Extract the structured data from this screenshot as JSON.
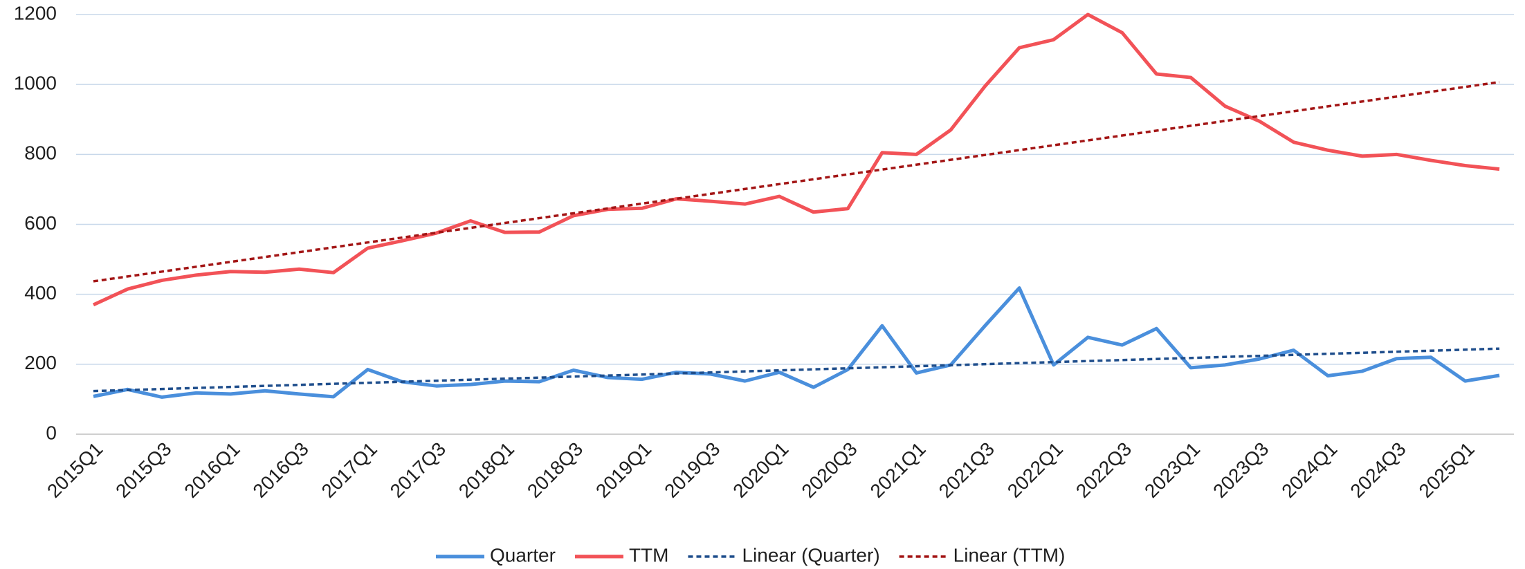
{
  "chart_data": {
    "type": "line",
    "categories": [
      "2015Q1",
      null,
      "2015Q3",
      null,
      "2016Q1",
      null,
      "2016Q3",
      null,
      "2017Q1",
      null,
      "2017Q3",
      null,
      "2018Q1",
      null,
      "2018Q3",
      null,
      "2019Q1",
      null,
      "2019Q3",
      null,
      "2020Q1",
      null,
      "2020Q3",
      null,
      "2021Q1",
      null,
      "2021Q3",
      null,
      "2022Q1",
      null,
      "2022Q3",
      null,
      "2023Q1",
      null,
      "2023Q3",
      null,
      "2024Q1",
      null,
      "2024Q3",
      null,
      "2025Q1",
      null
    ],
    "series": [
      {
        "name": "Quarter",
        "color": "#4a8fdc",
        "values": [
          108,
          128,
          106,
          118,
          115,
          124,
          115,
          107,
          185,
          150,
          138,
          142,
          152,
          150,
          183,
          162,
          157,
          177,
          172,
          152,
          177,
          134,
          185,
          310,
          175,
          198,
          310,
          418,
          198,
          277,
          255,
          302,
          190,
          198,
          215,
          240,
          167,
          180,
          216,
          220,
          152,
          168
        ]
      },
      {
        "name": "TTM",
        "color": "#f25257",
        "values": [
          370,
          415,
          440,
          455,
          465,
          463,
          472,
          462,
          532,
          553,
          575,
          610,
          577,
          578,
          625,
          643,
          646,
          673,
          666,
          658,
          680,
          635,
          645,
          805,
          800,
          870,
          995,
          1105,
          1128,
          1200,
          1148,
          1030,
          1020,
          938,
          895,
          835,
          812,
          795,
          800,
          783,
          768,
          758
        ]
      },
      {
        "name": "Linear (Quarter)",
        "color": "#1f4e8c",
        "trendline": "linear",
        "trend_of": 0
      },
      {
        "name": "Linear (TTM)",
        "color": "#a31515",
        "trendline": "linear",
        "trend_of": 1
      }
    ],
    "ylim": [
      0,
      1200
    ],
    "yticks": [
      0,
      200,
      400,
      600,
      800,
      1000,
      1200
    ],
    "grid": true,
    "legend": "bottom"
  }
}
